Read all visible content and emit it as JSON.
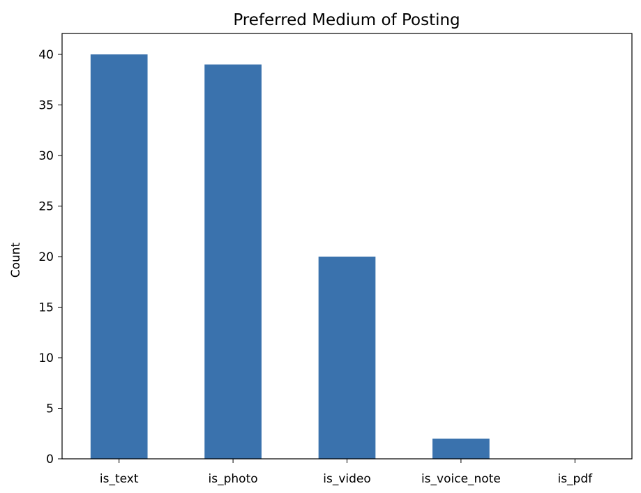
{
  "chart_data": {
    "type": "bar",
    "title": "Preferred Medium of Posting",
    "xlabel": "",
    "ylabel": "Count",
    "categories": [
      "is_text",
      "is_photo",
      "is_video",
      "is_voice_note",
      "is_pdf"
    ],
    "values": [
      40,
      39,
      20,
      2,
      0
    ],
    "ylim": [
      0,
      42
    ],
    "yticks": [
      0,
      5,
      10,
      15,
      20,
      25,
      30,
      35,
      40
    ],
    "grid": false,
    "bar_color": "#3a72ad"
  }
}
